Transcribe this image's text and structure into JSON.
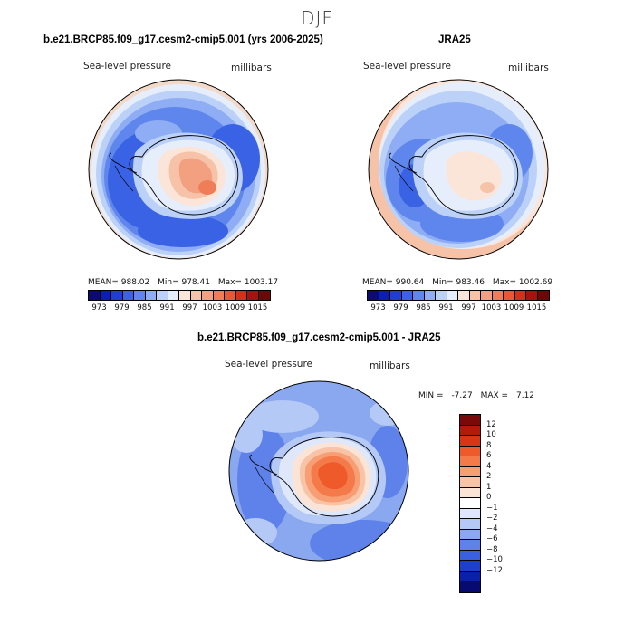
{
  "figure": {
    "season": "DJF"
  },
  "panels": {
    "model": {
      "title": "b.e21.BRCP85.f09_g17.cesm2-cmip5.001 (yrs 2006-2025)",
      "variable": "Sea-level pressure",
      "units": "millibars",
      "stats": {
        "mean": "MEAN= 988.02",
        "min": "Min= 978.41",
        "max": "Max= 1003.17"
      }
    },
    "obs": {
      "title": "JRA25",
      "variable": "Sea-level pressure",
      "units": "millibars",
      "stats": {
        "mean": "MEAN= 990.64",
        "min": "Min= 983.46",
        "max": "Max= 1002.69"
      }
    },
    "diff": {
      "title": "b.e21.BRCP85.f09_g17.cesm2-cmip5.001 - JRA25",
      "variable": "Sea-level pressure",
      "units": "millibars",
      "stats": {
        "min": "MIN =",
        "min_value": "-7.27",
        "max": "MAX =",
        "max_value": "7.12"
      }
    }
  },
  "colorbars": {
    "abs": {
      "ticks": [
        "973",
        "979",
        "985",
        "991",
        "997",
        "1003",
        "1009",
        "1015"
      ],
      "colors": [
        "#0d0a70",
        "#0a20b5",
        "#1e3fd6",
        "#3a62e4",
        "#5f86ec",
        "#8eadf4",
        "#bcd1f8",
        "#e6eefc",
        "#fbe4d8",
        "#f6c2a8",
        "#f2a080",
        "#ef7d58",
        "#e95835",
        "#d43218",
        "#a71410",
        "#6d0808"
      ]
    },
    "diff": {
      "ticks": [
        "12",
        "10",
        "8",
        "6",
        "4",
        "2",
        "1",
        "0",
        "−1",
        "−2",
        "−4",
        "−6",
        "−8",
        "−10",
        "−12"
      ],
      "colors": [
        "#7a0a0a",
        "#b31a0e",
        "#d83418",
        "#ee5a2a",
        "#f57a4a",
        "#f79e75",
        "#f8c4a8",
        "#fbe4d6",
        "#ffffff",
        "#dfe8fb",
        "#b4c9f6",
        "#8aa8f0",
        "#5e82ea",
        "#3a5fe0",
        "#1c3fd0",
        "#0a20a8",
        "#070a70"
      ]
    }
  }
}
